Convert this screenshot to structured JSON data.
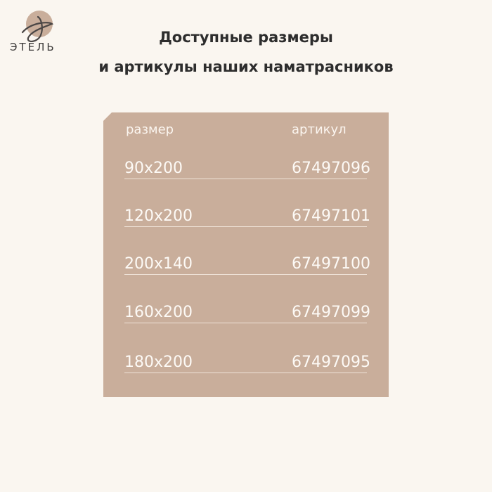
{
  "logo": {
    "text": "ЭТЕЛЬ"
  },
  "title": {
    "line1": "Доступные размеры",
    "line2": "и артикулы наших наматрасников"
  },
  "table": {
    "headers": {
      "size": "размер",
      "article": "артикул"
    },
    "rows": [
      {
        "size": "90x200",
        "article": "67497096"
      },
      {
        "size": "120x200",
        "article": "67497101"
      },
      {
        "size": "200x140",
        "article": "67497100"
      },
      {
        "size": "160x200",
        "article": "67497099"
      },
      {
        "size": "180x200",
        "article": "67497095"
      }
    ]
  },
  "colors": {
    "background": "#faf6f0",
    "panel": "#c9ae9b"
  }
}
